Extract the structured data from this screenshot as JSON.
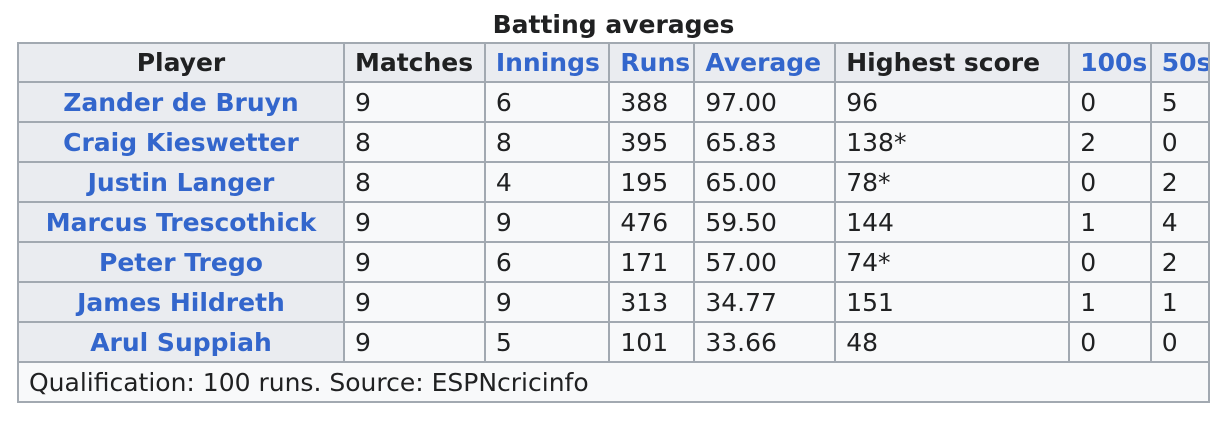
{
  "caption": "Batting averages",
  "headers": {
    "player": "Player",
    "matches": "Matches",
    "innings": "Innings",
    "runs": "Runs",
    "average": "Average",
    "highest": "Highest score",
    "hundreds": "100s",
    "fifties": "50s"
  },
  "rows": [
    {
      "player": "Zander de Bruyn",
      "matches": "9",
      "innings": "6",
      "runs": "388",
      "average": "97.00",
      "highest": "96",
      "hundreds": "0",
      "fifties": "5"
    },
    {
      "player": "Craig Kieswetter",
      "matches": "8",
      "innings": "8",
      "runs": "395",
      "average": "65.83",
      "highest": "138*",
      "hundreds": "2",
      "fifties": "0"
    },
    {
      "player": "Justin Langer",
      "matches": "8",
      "innings": "4",
      "runs": "195",
      "average": "65.00",
      "highest": "78*",
      "hundreds": "0",
      "fifties": "2"
    },
    {
      "player": "Marcus Trescothick",
      "matches": "9",
      "innings": "9",
      "runs": "476",
      "average": "59.50",
      "highest": "144",
      "hundreds": "1",
      "fifties": "4"
    },
    {
      "player": "Peter Trego",
      "matches": "9",
      "innings": "6",
      "runs": "171",
      "average": "57.00",
      "highest": "74*",
      "hundreds": "0",
      "fifties": "2"
    },
    {
      "player": "James Hildreth",
      "matches": "9",
      "innings": "9",
      "runs": "313",
      "average": "34.77",
      "highest": "151",
      "hundreds": "1",
      "fifties": "1"
    },
    {
      "player": "Arul Suppiah",
      "matches": "9",
      "innings": "5",
      "runs": "101",
      "average": "33.66",
      "highest": "48",
      "hundreds": "0",
      "fifties": "0"
    }
  ],
  "footer": "Qualification: 100 runs. Source: ESPNcricinfo",
  "colors": {
    "link": "#3366cc",
    "header_bg": "#eaecf0",
    "cell_bg": "#f8f9fa",
    "border": "#a2a9b1",
    "text": "#202122"
  }
}
